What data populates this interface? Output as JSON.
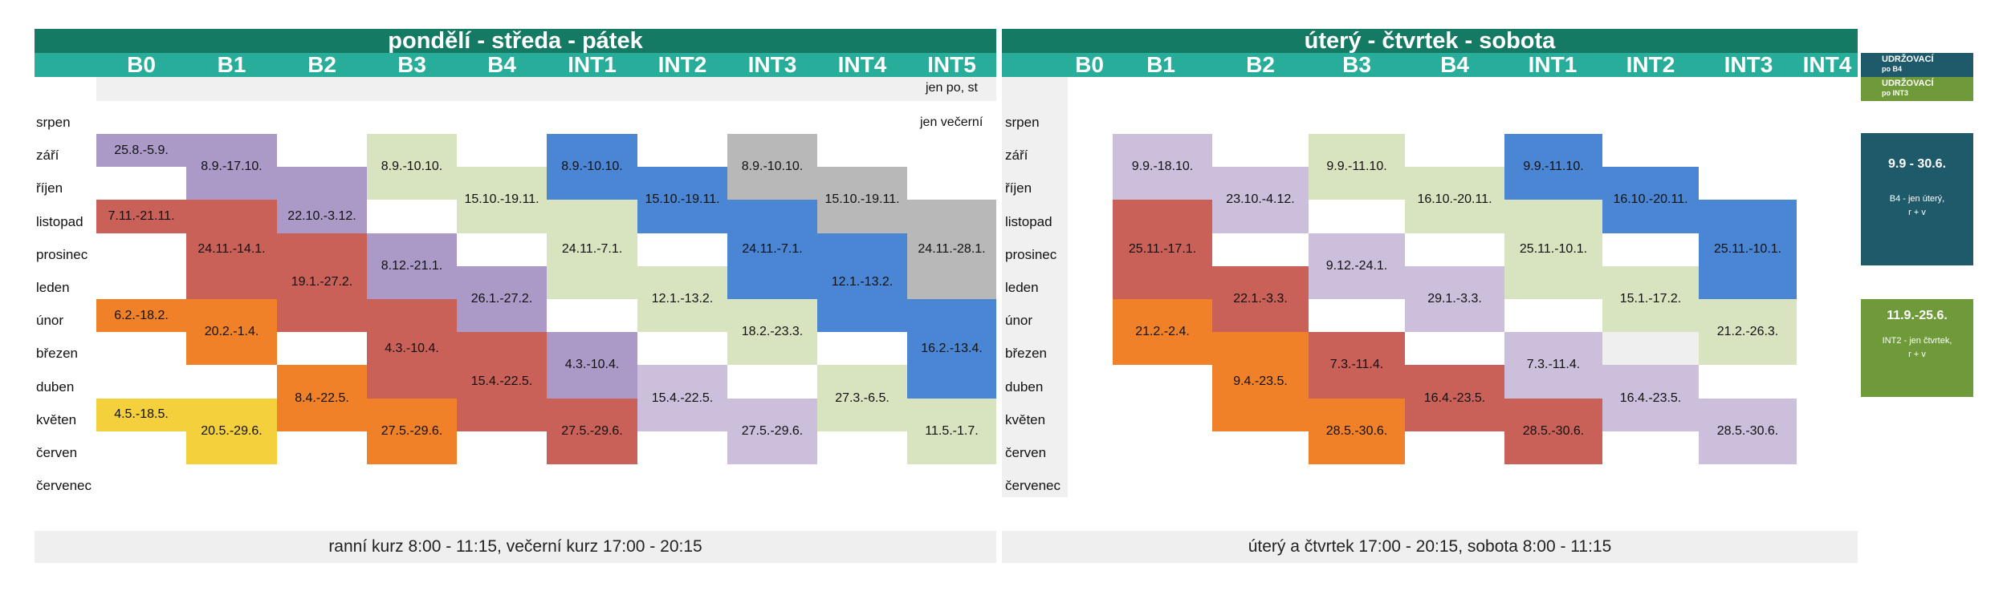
{
  "left": {
    "title": "pondělí - středa - pátek",
    "columns": [
      "B0",
      "B1",
      "B2",
      "B3",
      "B4",
      "INT1",
      "INT2",
      "INT3",
      "INT4",
      "INT5"
    ],
    "notes": [
      "jen po, st",
      "jen večerní"
    ],
    "months": [
      "srpen",
      "září",
      "říjen",
      "listopad",
      "prosinec",
      "leden",
      "únor",
      "březen",
      "duben",
      "květen",
      "červen",
      "červenec"
    ],
    "footer": "ranní kurz 8:00 - 11:15,   večerní kurz 17:00 - 20:15",
    "cells": [
      {
        "col": 0,
        "start": 1,
        "end": 2,
        "label": "25.8.-5.9.",
        "color": "#ab9ac8"
      },
      {
        "col": 0,
        "start": 3,
        "end": 4,
        "label": "7.11.-21.11.",
        "color": "#c96158"
      },
      {
        "col": 0,
        "start": 6,
        "end": 7,
        "label": "6.2.-18.2.",
        "color": "#f08128"
      },
      {
        "col": 0,
        "start": 9,
        "end": 10,
        "label": "4.5.-18.5.",
        "color": "#f4d03c"
      },
      {
        "col": 1,
        "start": 1,
        "end": 3,
        "label": "8.9.-17.10.",
        "color": "#ab9ac8"
      },
      {
        "col": 1,
        "start": 3,
        "end": 6,
        "label": "24.11.-14.1.",
        "color": "#c96158"
      },
      {
        "col": 1,
        "start": 6,
        "end": 8,
        "label": "20.2.-1.4.",
        "color": "#f08128"
      },
      {
        "col": 1,
        "start": 9,
        "end": 11,
        "label": "20.5.-29.6.",
        "color": "#f4d03c"
      },
      {
        "col": 2,
        "start": 2,
        "end": 5,
        "label": "22.10.-3.12.",
        "color": "#ab9ac8"
      },
      {
        "col": 2,
        "start": 4,
        "end": 7,
        "label": "19.1.-27.2.",
        "color": "#c96158"
      },
      {
        "col": 2,
        "start": 8,
        "end": 10,
        "label": "8.4.-22.5.",
        "color": "#f08128"
      },
      {
        "col": 3,
        "start": 1,
        "end": 3,
        "label": "8.9.-10.10.",
        "color": "#d8e4c0"
      },
      {
        "col": 3,
        "start": 4,
        "end": 6,
        "label": "8.12.-21.1.",
        "color": "#ab9ac8"
      },
      {
        "col": 3,
        "start": 6,
        "end": 9,
        "label": "4.3.-10.4.",
        "color": "#c96158"
      },
      {
        "col": 3,
        "start": 9,
        "end": 11,
        "label": "27.5.-29.6.",
        "color": "#f08128"
      },
      {
        "col": 4,
        "start": 2,
        "end": 4,
        "label": "15.10.-19.11.",
        "color": "#d8e4c0"
      },
      {
        "col": 4,
        "start": 5,
        "end": 7,
        "label": "26.1.-27.2.",
        "color": "#ab9ac8"
      },
      {
        "col": 4,
        "start": 7,
        "end": 10,
        "label": "15.4.-22.5.",
        "color": "#c96158"
      },
      {
        "col": 5,
        "start": 1,
        "end": 3,
        "label": "8.9.-10.10.",
        "color": "#4a86d4"
      },
      {
        "col": 5,
        "start": 3,
        "end": 6,
        "label": "24.11.-7.1.",
        "color": "#d8e4c0"
      },
      {
        "col": 5,
        "start": 7,
        "end": 9,
        "label": "4.3.-10.4.",
        "color": "#ab9ac8"
      },
      {
        "col": 5,
        "start": 9,
        "end": 11,
        "label": "27.5.-29.6.",
        "color": "#c96158"
      },
      {
        "col": 6,
        "start": 2,
        "end": 4,
        "label": "15.10.-19.11.",
        "color": "#4a86d4"
      },
      {
        "col": 6,
        "start": 5,
        "end": 7,
        "label": "12.1.-13.2.",
        "color": "#d8e4c0"
      },
      {
        "col": 6,
        "start": 8,
        "end": 10,
        "label": "15.4.-22.5.",
        "color": "#ccbfdc"
      },
      {
        "col": 7,
        "start": 1,
        "end": 3,
        "label": "8.9.-10.10.",
        "color": "#b8b8b8"
      },
      {
        "col": 7,
        "start": 3,
        "end": 6,
        "label": "24.11.-7.1.",
        "color": "#4a86d4"
      },
      {
        "col": 7,
        "start": 6,
        "end": 8,
        "label": "18.2.-23.3.",
        "color": "#d8e4c0"
      },
      {
        "col": 7,
        "start": 9,
        "end": 11,
        "label": "27.5.-29.6.",
        "color": "#ccbfdc"
      },
      {
        "col": 8,
        "start": 2,
        "end": 4,
        "label": "15.10.-19.11.",
        "color": "#b8b8b8"
      },
      {
        "col": 8,
        "start": 4,
        "end": 7,
        "label": "12.1.-13.2.",
        "color": "#4a86d4"
      },
      {
        "col": 8,
        "start": 8,
        "end": 10,
        "label": "27.3.-6.5.",
        "color": "#d8e4c0"
      },
      {
        "col": 9,
        "start": 3,
        "end": 6,
        "label": "24.11.-28.1.",
        "color": "#b8b8b8"
      },
      {
        "col": 9,
        "start": 6,
        "end": 9,
        "label": "16.2.-13.4.",
        "color": "#4a86d4"
      },
      {
        "col": 9,
        "start": 9,
        "end": 11,
        "label": "11.5.-1.7.",
        "color": "#d8e4c0"
      }
    ]
  },
  "right": {
    "title": "úterý - čtvrtek - sobota",
    "columns": [
      "B0",
      "B1",
      "B2",
      "B3",
      "B4",
      "INT1",
      "INT2",
      "INT3",
      "INT4"
    ],
    "months": [
      "srpen",
      "září",
      "říjen",
      "listopad",
      "prosinec",
      "leden",
      "únor",
      "březen",
      "duben",
      "květen",
      "červen",
      "červenec"
    ],
    "footer": "úterý a čtvrtek 17:00 - 20:15,  sobota 8:00 - 11:15",
    "cells": [
      {
        "col": 1,
        "start": 1,
        "end": 3,
        "label": "9.9.-18.10.",
        "color": "#ccbfdc"
      },
      {
        "col": 1,
        "start": 3,
        "end": 6,
        "label": "25.11.-17.1.",
        "color": "#c96158"
      },
      {
        "col": 1,
        "start": 6,
        "end": 8,
        "label": "21.2.-2.4.",
        "color": "#f08128"
      },
      {
        "col": 2,
        "start": 2,
        "end": 4,
        "label": "23.10.-4.12.",
        "color": "#ccbfdc"
      },
      {
        "col": 2,
        "start": 5,
        "end": 7,
        "label": "22.1.-3.3.",
        "color": "#c96158"
      },
      {
        "col": 2,
        "start": 7,
        "end": 10,
        "label": "9.4.-23.5.",
        "color": "#f08128"
      },
      {
        "col": 3,
        "start": 1,
        "end": 3,
        "label": "9.9.-11.10.",
        "color": "#d8e4c0"
      },
      {
        "col": 3,
        "start": 4,
        "end": 6,
        "label": "9.12.-24.1.",
        "color": "#ccbfdc"
      },
      {
        "col": 3,
        "start": 7,
        "end": 9,
        "label": "7.3.-11.4.",
        "color": "#c96158"
      },
      {
        "col": 3,
        "start": 9,
        "end": 11,
        "label": "28.5.-30.6.",
        "color": "#f08128"
      },
      {
        "col": 4,
        "start": 2,
        "end": 4,
        "label": "16.10.-20.11.",
        "color": "#d8e4c0"
      },
      {
        "col": 4,
        "start": 5,
        "end": 7,
        "label": "29.1.-3.3.",
        "color": "#ccbfdc"
      },
      {
        "col": 4,
        "start": 8,
        "end": 10,
        "label": "16.4.-23.5.",
        "color": "#c96158"
      },
      {
        "col": 5,
        "start": 1,
        "end": 3,
        "label": "9.9.-11.10.",
        "color": "#4a86d4"
      },
      {
        "col": 5,
        "start": 3,
        "end": 6,
        "label": "25.11.-10.1.",
        "color": "#d8e4c0"
      },
      {
        "col": 5,
        "start": 7,
        "end": 9,
        "label": "7.3.-11.4.",
        "color": "#ccbfdc"
      },
      {
        "col": 5,
        "start": 9,
        "end": 11,
        "label": "28.5.-30.6.",
        "color": "#c96158"
      },
      {
        "col": 6,
        "start": 2,
        "end": 4,
        "label": "16.10.-20.11.",
        "color": "#4a86d4"
      },
      {
        "col": 6,
        "start": 5,
        "end": 7,
        "label": "15.1.-17.2.",
        "color": "#d8e4c0"
      },
      {
        "col": 6,
        "start": 7,
        "end": 8,
        "label": "",
        "color": "#efefef"
      },
      {
        "col": 6,
        "start": 8,
        "end": 10,
        "label": "16.4.-23.5.",
        "color": "#ccbfdc"
      },
      {
        "col": 7,
        "start": 3,
        "end": 6,
        "label": "25.11.-10.1.",
        "color": "#4a86d4"
      },
      {
        "col": 7,
        "start": 6,
        "end": 8,
        "label": "21.2.-26.3.",
        "color": "#d8e4c0"
      },
      {
        "col": 7,
        "start": 9,
        "end": 11,
        "label": "28.5.-30.6.",
        "color": "#ccbfdc"
      }
    ]
  },
  "sidebar": {
    "top1_label": "UDRŽOVACÍ",
    "top1_sub": "po B4",
    "top1_color": "#1f5a6b",
    "top2_label": "UDRŽOVACÍ",
    "top2_sub": "po INT3",
    "top2_color": "#6e9a3a",
    "box1_period": "9.9 - 30.6.",
    "box1_note": "B4 - jen úterý,\nr + v",
    "box1_color": "#1f5a6b",
    "box2_period": "11.9.-25.6.",
    "box2_note": "INT2 - jen čtvrtek,\nr + v",
    "box2_color": "#6e9a3a"
  }
}
